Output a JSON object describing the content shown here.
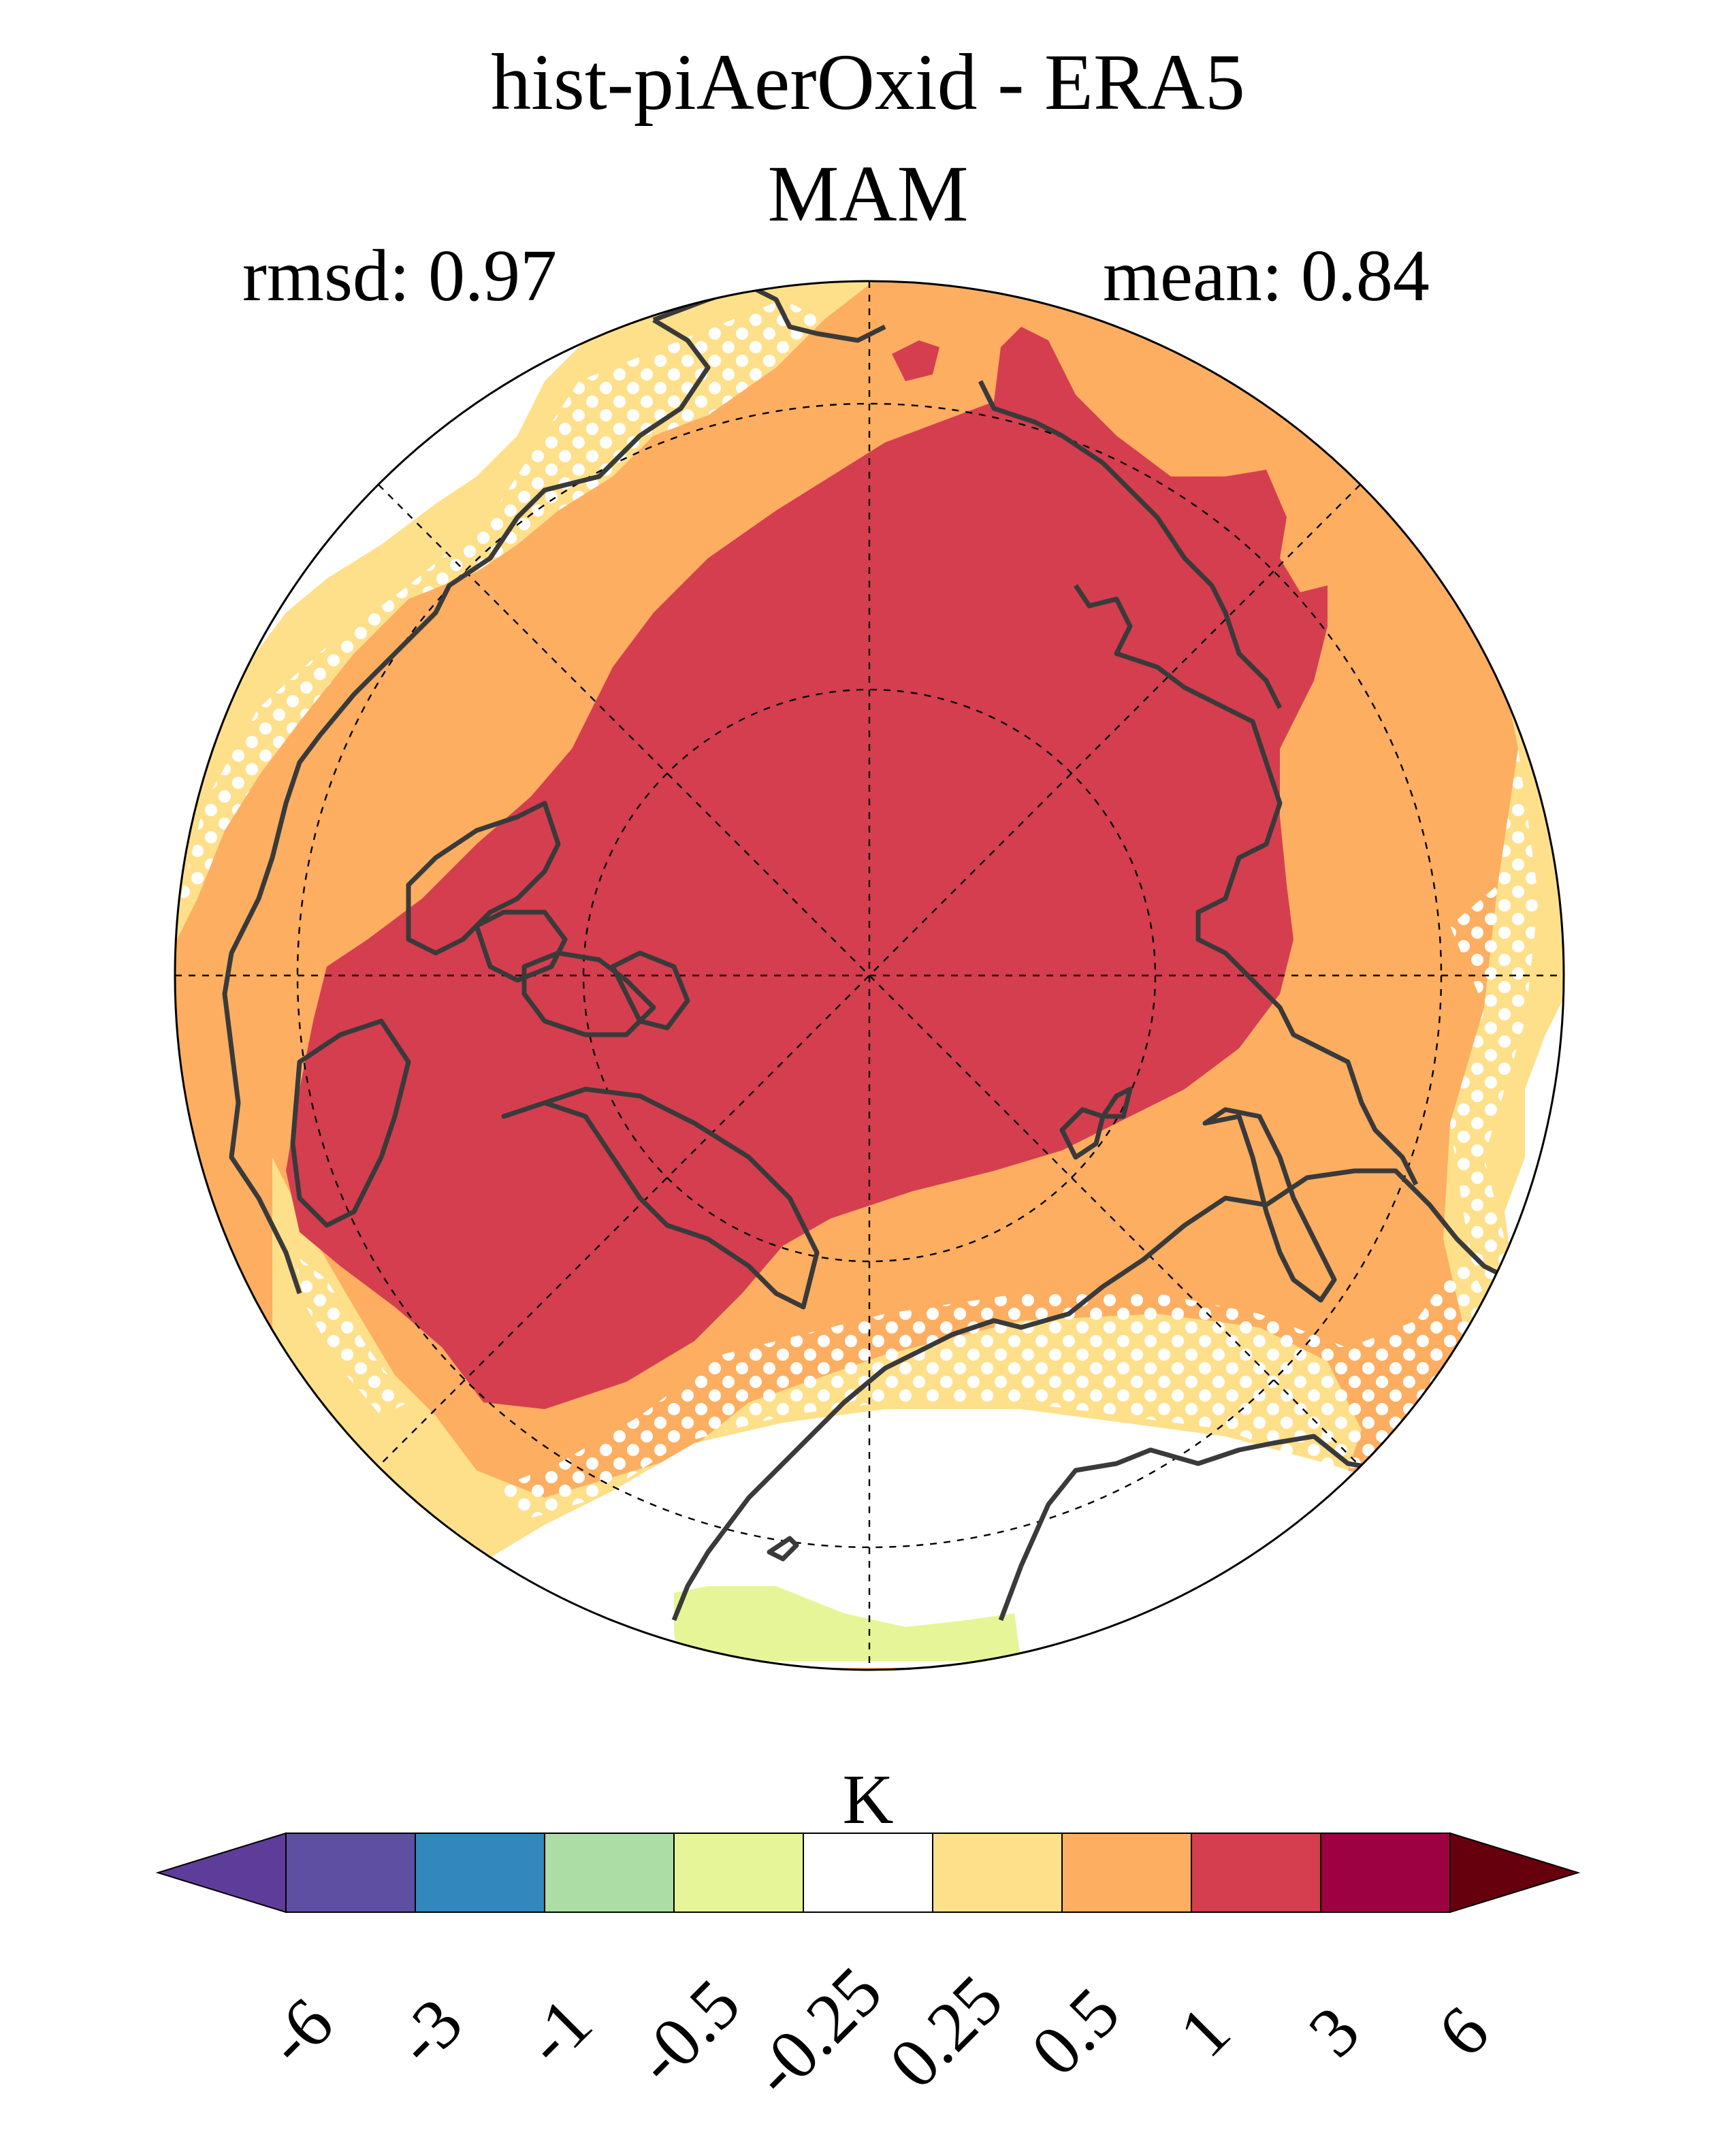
{
  "figure": {
    "title": "hist-piAerOxid - ERA5",
    "season": "MAM",
    "rmsd_label": "rmsd: 0.97",
    "mean_label": "mean: 0.84",
    "units": "K"
  },
  "colorbar": {
    "ticks": [
      "-6",
      "-3",
      "-1",
      "-0.5",
      "-0.25",
      "0.25",
      "0.5",
      "1",
      "3",
      "6"
    ],
    "colors": [
      "#5e3c99",
      "#5e4fa2",
      "#3288bd",
      "#abdda4",
      "#e6f598",
      "#ffffff",
      "#fee08b",
      "#fdae61",
      "#d53e4f",
      "#9e0142",
      "#67000d"
    ],
    "extend": "both"
  },
  "map": {
    "projection": "north polar stereographic",
    "latitude_circles": [
      60,
      70,
      80
    ],
    "meridian_spacing_deg": 45,
    "stippling": "white dots mark non-significant regions",
    "coastline_color": "#3a3a3a",
    "regions": [
      {
        "label": "central Arctic and Siberia",
        "bin": "1 to 3",
        "color": "#d53e4f"
      },
      {
        "label": "outer ring (Canada, Alaska, Europe)",
        "bin": "0.5 to 1",
        "color": "#fdae61"
      },
      {
        "label": "North Atlantic margins",
        "bin": "0.25 to 0.5",
        "color": "#fee08b"
      },
      {
        "label": "North Atlantic / Greenland",
        "bin": "-0.25 to 0.25",
        "color": "#ffffff"
      },
      {
        "label": "Greenland south tip",
        "bin": "-0.5 to -0.25",
        "color": "#e6f598"
      }
    ]
  }
}
